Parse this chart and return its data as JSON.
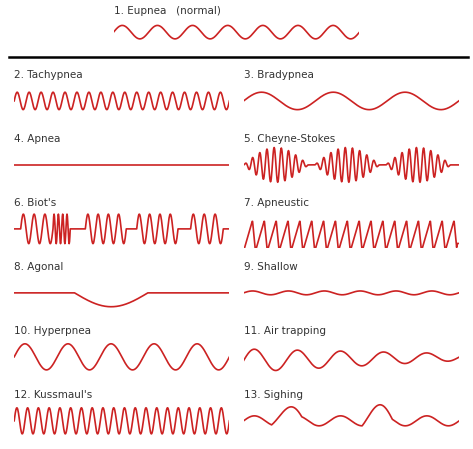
{
  "title_color": "#333333",
  "wave_color": "#cc2222",
  "bg_color": "#ffffff",
  "line_color": "#111111",
  "font_size_label": 7.5,
  "patterns": [
    {
      "id": 1,
      "name": "1. Eupnea   (normal)",
      "col": 0,
      "row": 0,
      "type": "sine",
      "freq": 7,
      "amp": 1.0
    },
    {
      "id": 2,
      "name": "2. Tachypnea",
      "col": 0,
      "row": 1,
      "type": "sine",
      "freq": 18,
      "amp": 1.0
    },
    {
      "id": 3,
      "name": "3. Bradypnea",
      "col": 1,
      "row": 1,
      "type": "sine",
      "freq": 3,
      "amp": 1.0
    },
    {
      "id": 4,
      "name": "4. Apnea",
      "col": 0,
      "row": 2,
      "type": "flat",
      "freq": 0,
      "amp": 0.0
    },
    {
      "id": 5,
      "name": "5. Cheyne-Stokes",
      "col": 1,
      "row": 2,
      "type": "cheyne",
      "freq": 10,
      "amp": 1.0
    },
    {
      "id": 6,
      "name": "6. Biot's",
      "col": 0,
      "row": 3,
      "type": "biots",
      "freq": 6,
      "amp": 1.0
    },
    {
      "id": 7,
      "name": "7. Apneustic",
      "col": 1,
      "row": 3,
      "type": "apneustic",
      "freq": 18,
      "amp": 1.0
    },
    {
      "id": 8,
      "name": "8. Agonal",
      "col": 0,
      "row": 4,
      "type": "agonal",
      "freq": 2,
      "amp": 1.0
    },
    {
      "id": 9,
      "name": "9. Shallow",
      "col": 1,
      "row": 4,
      "type": "sine",
      "freq": 6,
      "amp": 0.22
    },
    {
      "id": 10,
      "name": "10. Hyperpnea",
      "col": 0,
      "row": 5,
      "type": "sine",
      "freq": 5,
      "amp": 1.7
    },
    {
      "id": 11,
      "name": "11. Air trapping",
      "col": 1,
      "row": 5,
      "type": "airtrapping",
      "freq": 6,
      "amp": 1.0
    },
    {
      "id": 12,
      "name": "12. Kussmaul's",
      "col": 0,
      "row": 6,
      "type": "sine",
      "freq": 20,
      "amp": 1.7
    },
    {
      "id": 13,
      "name": "13. Sighing",
      "col": 1,
      "row": 6,
      "type": "sighing",
      "freq": 5,
      "amp": 1.0
    }
  ]
}
